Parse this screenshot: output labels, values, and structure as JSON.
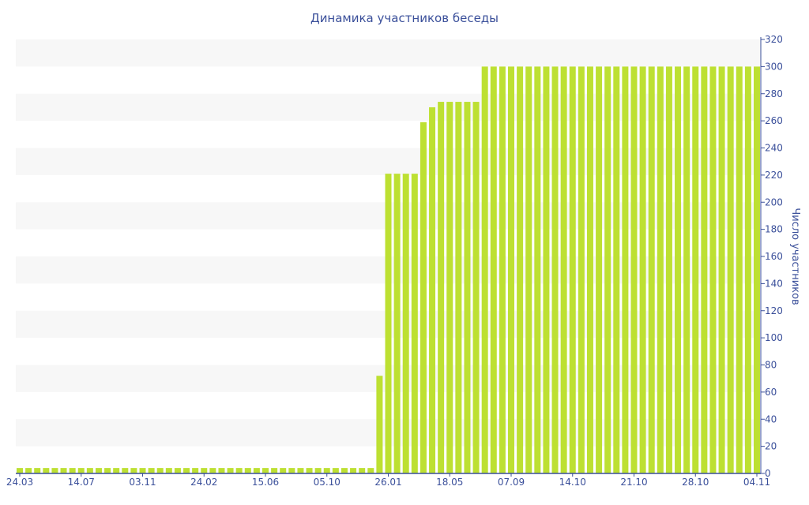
{
  "chart_data": {
    "type": "bar",
    "title": "Динамика участников беседы",
    "ylabel": "Число участников",
    "xlabel": "",
    "ylim": [
      0,
      320
    ],
    "yticks": [
      0,
      20,
      40,
      60,
      80,
      100,
      120,
      140,
      160,
      180,
      200,
      220,
      240,
      260,
      280,
      300,
      320
    ],
    "x_tick_labels": [
      "24.03",
      "14.07",
      "03.11",
      "24.02",
      "15.06",
      "05.10",
      "26.01",
      "18.05",
      "07.09",
      "14.10",
      "21.10",
      "28.10",
      "04.11"
    ],
    "x_tick_every": 7,
    "values": [
      4,
      4,
      4,
      4,
      4,
      4,
      4,
      4,
      4,
      4,
      4,
      4,
      4,
      4,
      4,
      4,
      4,
      4,
      4,
      4,
      4,
      4,
      4,
      4,
      4,
      4,
      4,
      4,
      4,
      4,
      4,
      4,
      4,
      4,
      4,
      4,
      4,
      4,
      4,
      4,
      4,
      72,
      221,
      221,
      221,
      221,
      259,
      270,
      274,
      274,
      274,
      274,
      274,
      300,
      300,
      300,
      300,
      300,
      300,
      300,
      300,
      300,
      300,
      300,
      300,
      300,
      300,
      300,
      300,
      300,
      300,
      300,
      300,
      300,
      300,
      300,
      300,
      300,
      300,
      300,
      300,
      300,
      300,
      300,
      300
    ],
    "bar_color": "#bde032",
    "axis_color": "#3a4f9a",
    "band_color": "#f7f7f7",
    "grid": "alternating bands",
    "y_axis_side": "right"
  }
}
